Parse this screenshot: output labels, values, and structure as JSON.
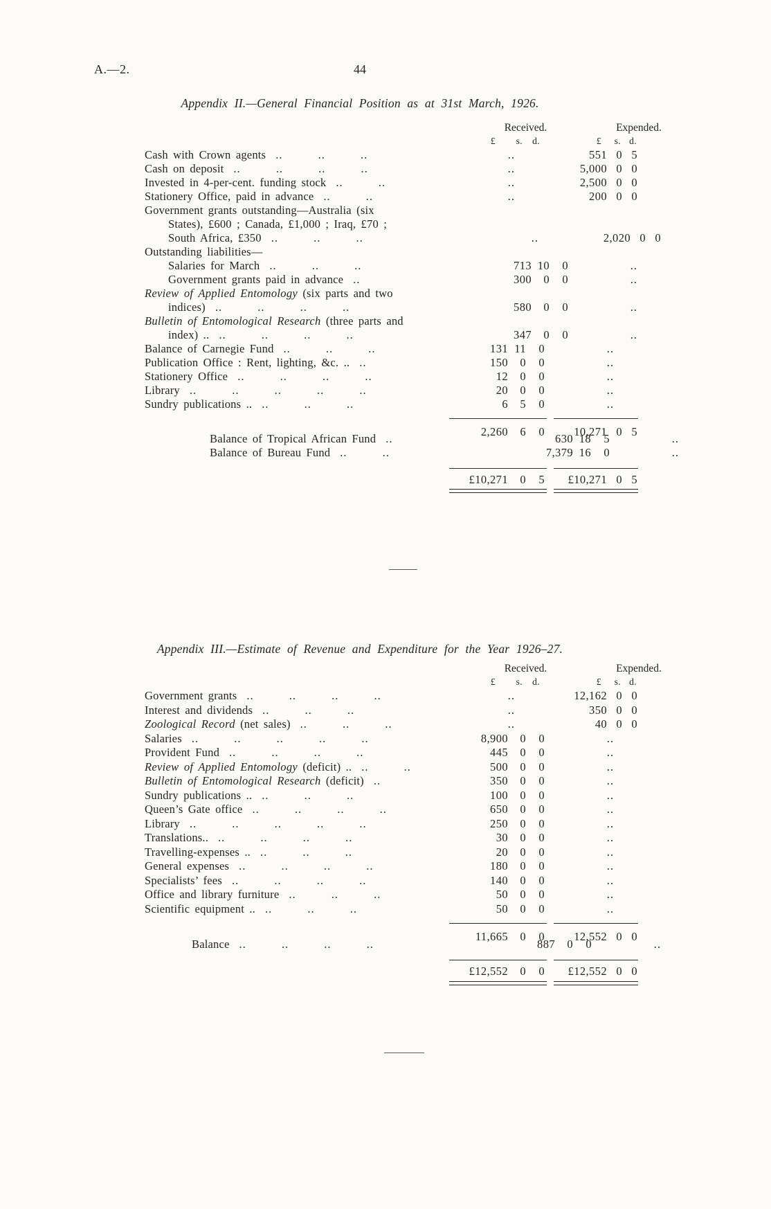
{
  "page": {
    "doc_ref": "A.—2.",
    "page_number": "44"
  },
  "theme": {
    "paper_color": "#fcfbf8",
    "ink_color": "#242424"
  },
  "tables": [
    {
      "title": "Appendix II.—General Financial Position as at 31st March, 1926.",
      "received_label": "Received.",
      "expended_label": "Expended.",
      "currency": {
        "pounds": "£",
        "shillings": "s.",
        "pence": "d."
      },
      "rows": [
        {
          "t": "Cash with Crown agents",
          "indent": 0,
          "dots": 3,
          "recv": "..",
          "exp": [
            "551",
            "0",
            "5"
          ]
        },
        {
          "t": "Cash on deposit",
          "indent": 0,
          "dots": 4,
          "recv": "..",
          "exp": [
            "5,000",
            "0",
            "0"
          ]
        },
        {
          "t": "Invested in 4-per-cent. funding stock",
          "indent": 0,
          "dots": 2,
          "recv": "..",
          "exp": [
            "2,500",
            "0",
            "0"
          ]
        },
        {
          "t": "Stationery Office, paid in advance",
          "indent": 0,
          "dots": 2,
          "recv": "..",
          "exp": [
            "200",
            "0",
            "0"
          ]
        },
        {
          "t": "Government grants outstanding—Australia (six",
          "indent": 0,
          "dots": 0,
          "recv": null,
          "exp": null
        },
        {
          "t": "States), £600 ;  Canada, £1,000 ;  Iraq, £70 ;",
          "indent": 1,
          "dots": 0,
          "recv": null,
          "exp": null
        },
        {
          "t": "South Africa, £350",
          "indent": 1,
          "dots": 3,
          "recv": "..",
          "exp": [
            "2,020",
            "0",
            "0"
          ]
        },
        {
          "t": "Outstanding liabilities—",
          "indent": 0,
          "dots": 0,
          "recv": null,
          "exp": null
        },
        {
          "t": "Salaries for March",
          "indent": 1,
          "dots": 3,
          "recv": [
            "713",
            "10",
            "0"
          ],
          "exp": ".."
        },
        {
          "t": "Government grants paid in advance",
          "indent": 1,
          "dots": 1,
          "recv": [
            "300",
            "0",
            "0"
          ],
          "exp": ".."
        },
        {
          "it": "Review of Applied Entomology",
          "t": " (six parts and two",
          "indent": 0,
          "dots": 0,
          "recv": null,
          "exp": null
        },
        {
          "t": "indices)",
          "indent": 1,
          "dots": 4,
          "recv": [
            "580",
            "0",
            "0"
          ],
          "exp": ".."
        },
        {
          "it": "Bulletin of Entomological Research",
          "t": " (three parts and",
          "indent": 0,
          "dots": 0,
          "recv": null,
          "exp": null
        },
        {
          "t": "index) ..",
          "indent": 1,
          "dots": 4,
          "recv": [
            "347",
            "0",
            "0"
          ],
          "exp": ".."
        },
        {
          "t": "Balance of Carnegie Fund",
          "indent": 0,
          "dots": 3,
          "recv": [
            "131",
            "11",
            "0"
          ],
          "exp": ".."
        },
        {
          "t": "Publication Office :  Rent, lighting, &c. ..",
          "indent": 0,
          "dots": 1,
          "recv": [
            "150",
            "0",
            "0"
          ],
          "exp": ".."
        },
        {
          "t": "Stationery Office",
          "indent": 0,
          "dots": 4,
          "recv": [
            "12",
            "0",
            "0"
          ],
          "exp": ".."
        },
        {
          "t": "Library",
          "indent": 0,
          "dots": 5,
          "recv": [
            "20",
            "0",
            "0"
          ],
          "exp": ".."
        },
        {
          "t": "Sundry publications ..",
          "indent": 0,
          "dots": 3,
          "recv": [
            "6",
            "5",
            "0"
          ],
          "exp": ".."
        }
      ],
      "summary": [
        {
          "type": "subtotal",
          "recv": [
            "2,260",
            "6",
            "0"
          ],
          "exp": [
            "10,271",
            "0",
            "5"
          ]
        },
        {
          "type": "item",
          "t": "Balance of Tropical African Fund",
          "indent": 3,
          "dots": 1,
          "recv": [
            "630",
            "18",
            "5"
          ],
          "exp": ".."
        },
        {
          "type": "item",
          "t": "Balance of Bureau Fund",
          "indent": 3,
          "dots": 2,
          "recv": [
            "7,379",
            "16",
            "0"
          ],
          "exp": ".."
        },
        {
          "type": "total",
          "recv": [
            "£10,271",
            "0",
            "5"
          ],
          "exp": [
            "£10,271",
            "0",
            "5"
          ]
        }
      ]
    },
    {
      "title": "Appendix III.—Estimate of Revenue and Expenditure for the Year 1926–27.",
      "received_label": "Received.",
      "expended_label": "Expended.",
      "currency": {
        "pounds": "£",
        "shillings": "s.",
        "pence": "d."
      },
      "rows": [
        {
          "t": "Government grants",
          "indent": 0,
          "dots": 4,
          "recv": "..",
          "exp": [
            "12,162",
            "0",
            "0"
          ]
        },
        {
          "t": "Interest and dividends",
          "indent": 0,
          "dots": 3,
          "recv": "..",
          "exp": [
            "350",
            "0",
            "0"
          ]
        },
        {
          "it": "Zoological Record",
          "t": " (net sales)",
          "indent": 0,
          "dots": 3,
          "recv": "..",
          "exp": [
            "40",
            "0",
            "0"
          ]
        },
        {
          "t": "Salaries",
          "indent": 0,
          "dots": 5,
          "recv": [
            "8,900",
            "0",
            "0"
          ],
          "exp": ".."
        },
        {
          "t": "Provident Fund",
          "indent": 0,
          "dots": 4,
          "recv": [
            "445",
            "0",
            "0"
          ],
          "exp": ".."
        },
        {
          "it": "Review of Applied Entomology",
          "t": " (deficit) ..",
          "indent": 0,
          "dots": 2,
          "recv": [
            "500",
            "0",
            "0"
          ],
          "exp": ".."
        },
        {
          "it": "Bulletin of Entomological Research",
          "t": " (deficit)",
          "indent": 0,
          "dots": 1,
          "recv": [
            "350",
            "0",
            "0"
          ],
          "exp": ".."
        },
        {
          "t": "Sundry publications ..",
          "indent": 0,
          "dots": 3,
          "recv": [
            "100",
            "0",
            "0"
          ],
          "exp": ".."
        },
        {
          "t": "Queen’s Gate office",
          "indent": 0,
          "dots": 4,
          "recv": [
            "650",
            "0",
            "0"
          ],
          "exp": ".."
        },
        {
          "t": "Library",
          "indent": 0,
          "dots": 5,
          "recv": [
            "250",
            "0",
            "0"
          ],
          "exp": ".."
        },
        {
          "t": "Translations..",
          "indent": 0,
          "dots": 4,
          "recv": [
            "30",
            "0",
            "0"
          ],
          "exp": ".."
        },
        {
          "t": "Travelling-expenses ..",
          "indent": 0,
          "dots": 3,
          "recv": [
            "20",
            "0",
            "0"
          ],
          "exp": ".."
        },
        {
          "t": "General expenses",
          "indent": 0,
          "dots": 4,
          "recv": [
            "180",
            "0",
            "0"
          ],
          "exp": ".."
        },
        {
          "t": "Specialists’ fees",
          "indent": 0,
          "dots": 4,
          "recv": [
            "140",
            "0",
            "0"
          ],
          "exp": ".."
        },
        {
          "t": "Office and library furniture",
          "indent": 0,
          "dots": 3,
          "recv": [
            "50",
            "0",
            "0"
          ],
          "exp": ".."
        },
        {
          "t": "Scientific equipment ..",
          "indent": 0,
          "dots": 3,
          "recv": [
            "50",
            "0",
            "0"
          ],
          "exp": ".."
        }
      ],
      "summary": [
        {
          "type": "subtotal",
          "recv": [
            "11,665",
            "0",
            "0"
          ],
          "exp": [
            "12,552",
            "0",
            "0"
          ]
        },
        {
          "type": "item",
          "t": "Balance",
          "indent": 2,
          "dots": 4,
          "recv": [
            "887",
            "0",
            "0"
          ],
          "exp": ".."
        },
        {
          "type": "total",
          "recv": [
            "£12,552",
            "0",
            "0"
          ],
          "exp": [
            "£12,552",
            "0",
            "0"
          ]
        }
      ]
    }
  ]
}
